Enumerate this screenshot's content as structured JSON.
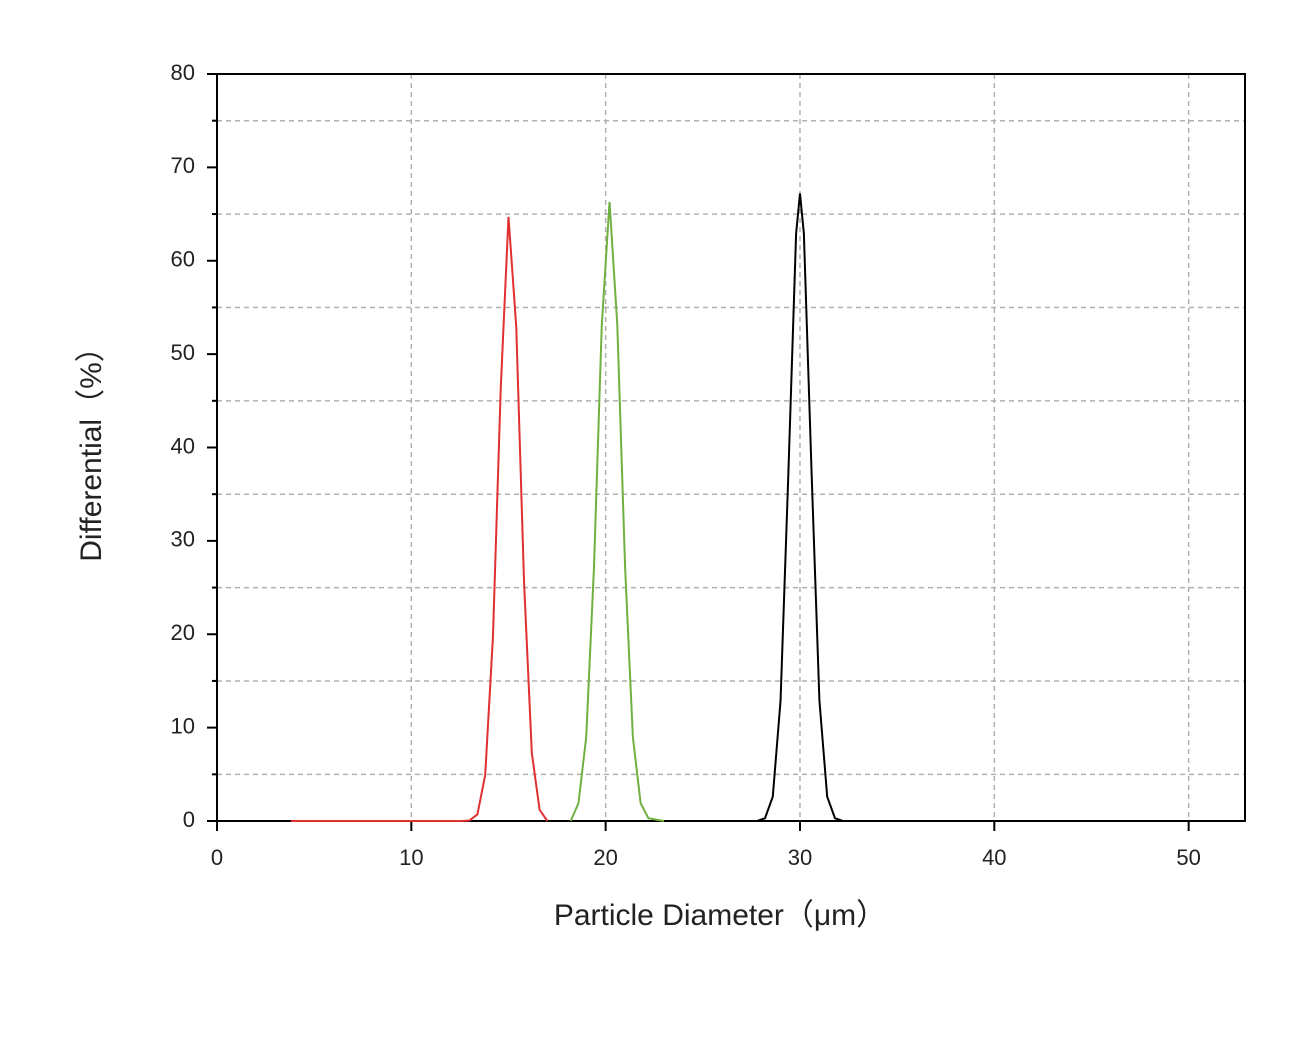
{
  "chart_data": {
    "type": "line",
    "xlabel": "Particle Diameter（μm）",
    "ylabel": "Differential（%）",
    "xlim": [
      0,
      52.9
    ],
    "ylim": [
      0,
      80
    ],
    "xticks": [
      0,
      10,
      20,
      30,
      40,
      50
    ],
    "yticks": [
      0,
      10,
      20,
      30,
      40,
      50,
      60,
      70,
      80
    ],
    "xgrid": [
      10,
      20,
      30,
      40,
      50
    ],
    "ygrid": [
      5,
      15,
      25,
      35,
      45,
      55,
      65,
      75
    ],
    "series": [
      {
        "color": "#e03030",
        "x": [
          3.8,
          12.6,
          13.0,
          13.4,
          13.8,
          14.2,
          14.6,
          15.0,
          15.4,
          15.8,
          16.2,
          16.6,
          17.0
        ],
        "values": [
          0,
          0,
          0.06,
          0.7,
          4.9,
          19.7,
          46.3,
          64.7,
          52.9,
          25.6,
          7.3,
          1.2,
          0
        ]
      },
      {
        "color": "#70b040",
        "x": [
          18.2,
          18.6,
          19.0,
          19.4,
          19.8,
          20.2,
          20.6,
          21.0,
          21.4,
          21.8,
          22.2,
          23.0
        ],
        "values": [
          0,
          1.9,
          9.0,
          27.2,
          53.1,
          66.3,
          53.1,
          27.2,
          9.0,
          1.9,
          0.3,
          0
        ]
      },
      {
        "color": "#000000",
        "x": [
          27.8,
          28.2,
          28.6,
          29.0,
          29.4,
          29.8,
          30.0,
          30.2,
          30.6,
          31.0,
          31.4,
          31.8,
          32.2
        ],
        "values": [
          0,
          0.3,
          2.6,
          12.9,
          37.1,
          62.9,
          67.2,
          62.9,
          37.1,
          12.9,
          2.6,
          0.3,
          0
        ]
      }
    ]
  }
}
